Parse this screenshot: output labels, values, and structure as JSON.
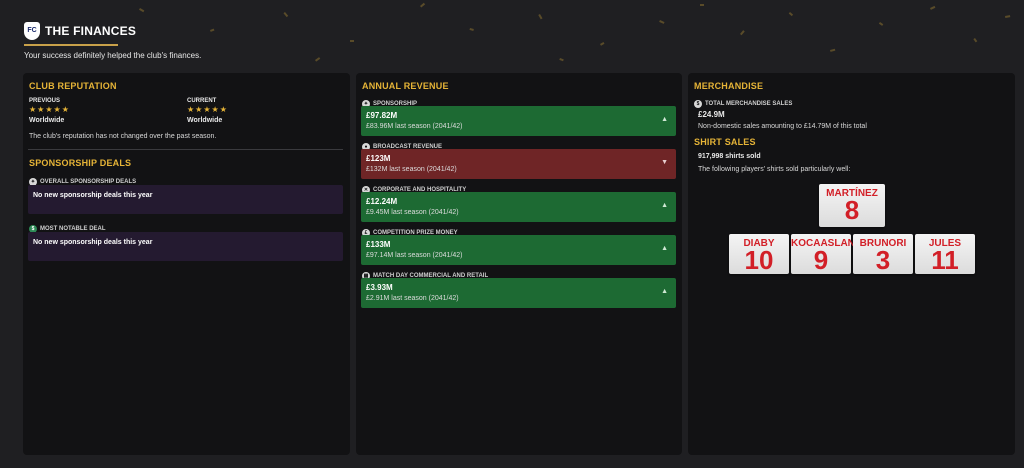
{
  "header": {
    "badge": "FC",
    "title": "THE FINANCES",
    "subtitle": "Your success definitely helped the club's finances."
  },
  "reputation": {
    "title": "CLUB REPUTATION",
    "previous_label": "PREVIOUS",
    "previous_stars": "★★★★★",
    "previous_value": "Worldwide",
    "current_label": "CURRENT",
    "current_stars": "★★★★★",
    "current_value": "Worldwide",
    "note": "The club's reputation has not changed over the past season."
  },
  "sponsorship": {
    "title": "SPONSORSHIP DEALS",
    "overall_label": "OVERALL SPONSORSHIP DEALS",
    "overall_text": "No new sponsorship deals this year",
    "notable_label": "MOST NOTABLE DEAL",
    "notable_text": "No new sponsorship deals this year"
  },
  "revenue": {
    "title": "ANNUAL REVENUE",
    "items": [
      {
        "label": "SPONSORSHIP",
        "value": "£97.82M",
        "last": "£83.96M last season (2041/42)",
        "trend": "up"
      },
      {
        "label": "BROADCAST REVENUE",
        "value": "£123M",
        "last": "£132M last season (2041/42)",
        "trend": "down"
      },
      {
        "label": "CORPORATE AND HOSPITALITY",
        "value": "£12.24M",
        "last": "£9.45M last season (2041/42)",
        "trend": "up"
      },
      {
        "label": "COMPETITION PRIZE MONEY",
        "value": "£133M",
        "last": "£97.14M last season (2041/42)",
        "trend": "up"
      },
      {
        "label": "MATCH DAY COMMERCIAL AND RETAIL",
        "value": "£3.93M",
        "last": "£2.91M last season (2041/42)",
        "trend": "up"
      }
    ],
    "up_arrow": "▲",
    "down_arrow": "▼"
  },
  "merchandise": {
    "title": "MERCHANDISE",
    "total_label": "TOTAL MERCHANDISE SALES",
    "total_value": "£24.9M",
    "total_note": "Non-domestic sales amounting to £14.79M of this total",
    "shirt_title": "SHIRT SALES",
    "shirts_sold": "917,998 shirts sold",
    "shirt_note": "The following players' shirts sold particularly well:",
    "shirts": [
      {
        "name": "MARTÍNEZ",
        "number": "8"
      },
      {
        "name": "DIABY",
        "number": "10"
      },
      {
        "name": "KOCAASLAN",
        "number": "9"
      },
      {
        "name": "BRUNORI",
        "number": "3"
      },
      {
        "name": "JULES",
        "number": "11"
      }
    ]
  },
  "colors": {
    "accent": "#e6b437",
    "up": "#1d6a33",
    "down": "#6f2526",
    "shirt_text": "#d21f27"
  }
}
